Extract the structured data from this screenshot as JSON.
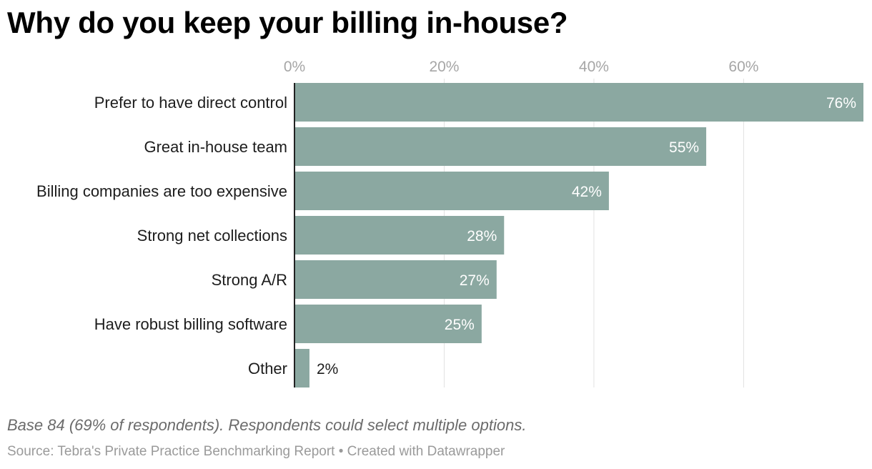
{
  "title": "Why do you keep your billing in-house?",
  "note": "Base 84 (69% of respondents). Respondents could select multiple options.",
  "footer": {
    "source": "Source: Tebra's Private Practice Benchmarking Report",
    "separator": "•",
    "credit": "Created with Datawrapper"
  },
  "colors": {
    "bar": "#8ba8a1",
    "grid": "#e1e1e1",
    "axis": "#222222",
    "label_inside": "#ffffff",
    "label_outside": "#1d1d1d"
  },
  "chart_data": {
    "type": "bar",
    "orientation": "horizontal",
    "title": "Why do you keep your billing in-house?",
    "categories": [
      "Prefer to have direct control",
      "Great in-house team",
      "Billing companies are too expensive",
      "Strong net collections",
      "Strong A/R",
      "Have robust billing software",
      "Other"
    ],
    "values": [
      76,
      55,
      42,
      28,
      27,
      25,
      2
    ],
    "value_labels": [
      "76%",
      "55%",
      "42%",
      "28%",
      "27%",
      "25%",
      "2%"
    ],
    "x_ticks": [
      0,
      20,
      40,
      60
    ],
    "x_tick_labels": [
      "0%",
      "20%",
      "40%",
      "60%"
    ],
    "xlim": [
      0,
      76
    ],
    "xlabel": "",
    "ylabel": "",
    "unit": "%",
    "grid": true,
    "axis_position": "top"
  }
}
